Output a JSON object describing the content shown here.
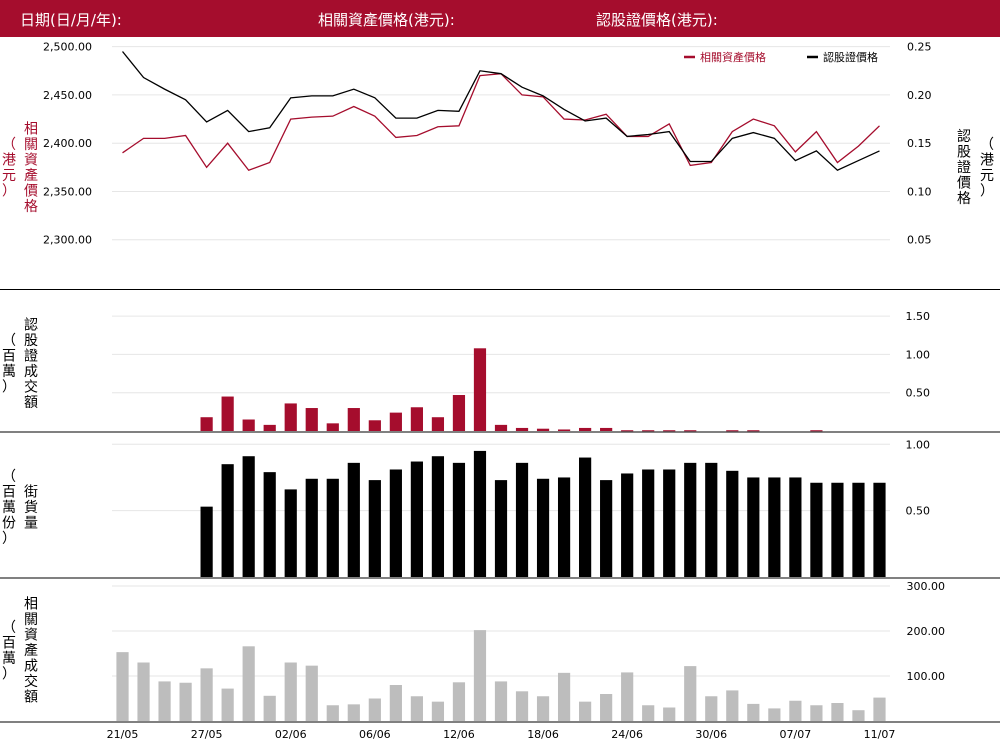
{
  "header": {
    "date_label": "日期(日/月/年):",
    "underlying_label": "相關資產價格(港元):",
    "warrant_label": "認股證價格(港元):"
  },
  "colors": {
    "header_bg": "#a50d2d",
    "underlying": "#a50d2d",
    "warrant": "#000000",
    "underlying_turnover_bar": "#bdbdbd",
    "grid": "#e6e6e6"
  },
  "chart_data": [
    {
      "type": "line",
      "legend": [
        "相關資產價格",
        "認股證價格"
      ],
      "legend_position": "top-right",
      "ylabel_left": "相關資產價格（港元）",
      "ylabel_right": "認股證價格（港元）",
      "y_left_ticks": [
        "2,500.00",
        "2,450.00",
        "2,400.00",
        "2,350.00",
        "2,300.00"
      ],
      "y_right_ticks": [
        "0.25",
        "0.20",
        "0.15",
        "0.10",
        "0.05"
      ],
      "ylim_left": [
        2250,
        2510
      ],
      "ylim_right": [
        0,
        0.26
      ],
      "series": [
        {
          "name": "相關資產價格",
          "axis": "left",
          "values": [
            2390,
            2405,
            2405,
            2408,
            2375,
            2400,
            2372,
            2380,
            2425,
            2427,
            2428,
            2438,
            2428,
            2406,
            2408,
            2417,
            2418,
            2470,
            2472,
            2450,
            2448,
            2425,
            2424,
            2430,
            2407,
            2407,
            2420,
            2377,
            2380,
            2412,
            2425,
            2418,
            2391,
            2412,
            2380,
            2397,
            2418
          ]
        },
        {
          "name": "認股證價格",
          "axis": "right",
          "values": [
            0.245,
            0.218,
            0.206,
            0.195,
            0.172,
            0.184,
            0.162,
            0.166,
            0.197,
            0.199,
            0.199,
            0.206,
            0.197,
            0.176,
            0.176,
            0.184,
            0.183,
            0.225,
            0.222,
            0.208,
            0.199,
            0.185,
            0.173,
            0.176,
            0.157,
            0.159,
            0.162,
            0.131,
            0.131,
            0.155,
            0.161,
            0.155,
            0.132,
            0.142,
            0.122,
            0.132,
            0.142
          ]
        }
      ]
    },
    {
      "type": "bar",
      "ylabel": "認股證成交額（百萬）",
      "y_ticks": [
        "1.50",
        "1.00",
        "0.50"
      ],
      "ylim": [
        0,
        1.75
      ],
      "values": [
        0,
        0,
        0,
        0,
        0.18,
        0.45,
        0.15,
        0.08,
        0.36,
        0.3,
        0.1,
        0.3,
        0.14,
        0.24,
        0.31,
        0.18,
        0.47,
        1.08,
        0.08,
        0.04,
        0.03,
        0.02,
        0.04,
        0.04,
        0.01,
        0.01,
        0.01,
        0.01,
        0,
        0.01,
        0.01,
        0,
        0,
        0.01,
        0,
        0,
        0
      ]
    },
    {
      "type": "bar",
      "ylabel": "街貨量（百萬份）",
      "y_ticks": [
        "1.00",
        "0.50"
      ],
      "ylim": [
        0,
        1.1
      ],
      "values": [
        0,
        0,
        0,
        0,
        0.53,
        0.85,
        0.91,
        0.79,
        0.66,
        0.74,
        0.74,
        0.86,
        0.73,
        0.81,
        0.87,
        0.91,
        0.86,
        0.95,
        0.73,
        0.86,
        0.74,
        0.75,
        0.9,
        0.73,
        0.78,
        0.81,
        0.81,
        0.86,
        0.86,
        0.8,
        0.75,
        0.75,
        0.75,
        0.71,
        0.71,
        0.71,
        0.71
      ]
    },
    {
      "type": "bar",
      "ylabel": "相關資產成交額（百萬）",
      "y_ticks": [
        "300.00",
        "200.00",
        "100.00"
      ],
      "ylim": [
        0,
        320
      ],
      "x_ticks": [
        "21/05",
        "27/05",
        "02/06",
        "06/06",
        "12/06",
        "18/06",
        "24/06",
        "30/06",
        "07/07",
        "11/07"
      ],
      "values": [
        153,
        130,
        88,
        85,
        117,
        72,
        166,
        56,
        130,
        123,
        35,
        37,
        50,
        80,
        55,
        43,
        86,
        202,
        88,
        66,
        55,
        107,
        43,
        60,
        108,
        35,
        30,
        122,
        55,
        68,
        38,
        28,
        45,
        35,
        40,
        24,
        52
      ]
    }
  ]
}
